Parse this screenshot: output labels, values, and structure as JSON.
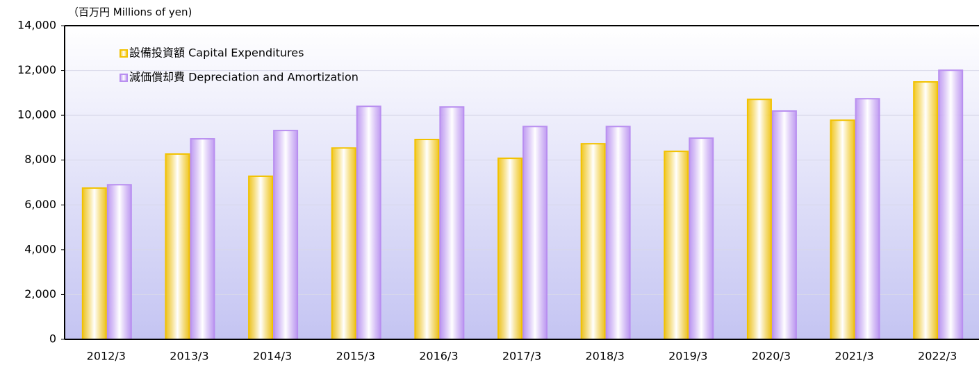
{
  "chart_data": {
    "type": "bar",
    "y_label": "（百万円  Millions of yen)",
    "categories": [
      "2012/3",
      "2013/3",
      "2014/3",
      "2015/3",
      "2016/3",
      "2017/3",
      "2018/3",
      "2019/3",
      "2020/3",
      "2021/3",
      "2022/3"
    ],
    "series": [
      {
        "name": "設備投資額 Capital Expenditures",
        "color": "#f2c200",
        "values": [
          6750,
          8270,
          7280,
          8540,
          8920,
          8080,
          8730,
          8390,
          10710,
          9780,
          11490
        ]
      },
      {
        "name": "減価償却費 Depreciation and Amortization",
        "color": "#b98ff0",
        "values": [
          6900,
          8950,
          9320,
          10400,
          10370,
          9500,
          9500,
          8980,
          10190,
          10740,
          12010
        ]
      }
    ],
    "ylim": [
      0,
      14000
    ],
    "yticks": [
      0,
      {
        "value": 2000,
        "label": "2,000"
      },
      {
        "value": 4000,
        "label": "4,000"
      },
      {
        "value": 6000,
        "label": "6,000"
      },
      {
        "value": 8000,
        "label": "8,000"
      },
      {
        "value": 10000,
        "label": "10,000"
      },
      {
        "value": 12000,
        "label": "12,000"
      },
      {
        "value": 14000,
        "label": "14,000"
      }
    ],
    "grid": true,
    "legend_position": "upper left"
  }
}
